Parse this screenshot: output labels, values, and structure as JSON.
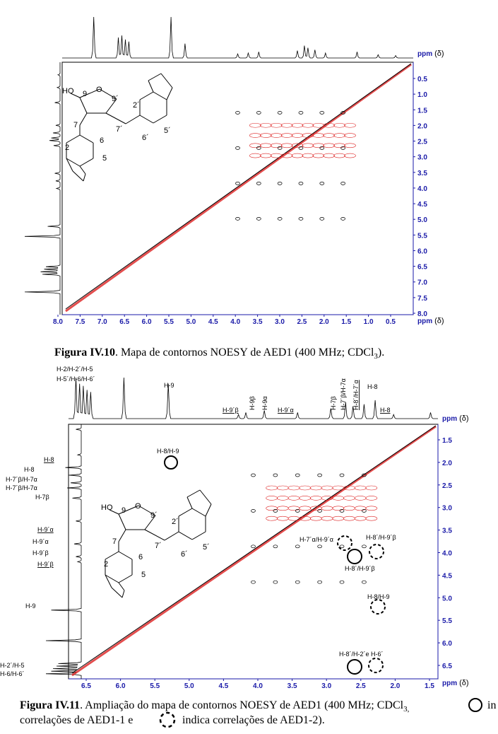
{
  "figure1": {
    "unit": "ppm",
    "delta": "(δ)",
    "x_ticks": [
      "8.0",
      "7.5",
      "7.0",
      "6.5",
      "6.0",
      "5.5",
      "5.0",
      "4.5",
      "4.0",
      "3.5",
      "3.0",
      "2.5",
      "2.0",
      "1.5",
      "1.0",
      "0.5"
    ],
    "y_ticks": [
      "0.5",
      "1.0",
      "1.5",
      "2.0",
      "2.5",
      "3.0",
      "3.5",
      "4.0",
      "4.5",
      "5.0",
      "5.5",
      "6.0",
      "6.5",
      "7.0",
      "7.5",
      "8.0"
    ],
    "structure_labels": [
      "HO",
      "9",
      "O",
      "9´",
      "2´",
      "7",
      "7´",
      "6´",
      "5´",
      "2",
      "6",
      "5"
    ],
    "caption_label": "Figura IV.10",
    "caption_text": ". Mapa de contornos NOESY de AED1 (400 MHz; CDCl",
    "caption_sub": "3",
    "caption_end": ")."
  },
  "figure2": {
    "unit": "ppm",
    "delta": "(δ)",
    "x_ticks": [
      "6.5",
      "6.0",
      "5.5",
      "5.0",
      "4.5",
      "4.0",
      "3.5",
      "3.0",
      "2.5",
      "2.0",
      "1.5"
    ],
    "y_ticks": [
      "1.5",
      "2.0",
      "2.5",
      "3.0",
      "3.5",
      "4.0",
      "4.5",
      "5.0",
      "5.5",
      "6.0",
      "6.5"
    ],
    "structure_labels": [
      "HO",
      "9",
      "O",
      "9´",
      "2´",
      "7",
      "7´",
      "6´",
      "5´",
      "2",
      "6",
      "5"
    ],
    "top_labels": [
      "H-2/H-2´/H-5",
      "H-5´/H-6/H-6´",
      "H-9",
      "H-9´β",
      "H-9β",
      "H-9α",
      "H-9´α",
      "H-7β",
      "H-7´β/H-7α",
      "H-8´/H-7´α",
      "H-8",
      "H-8"
    ],
    "left_labels": [
      "H-8",
      "H-8",
      "H-7´β/H-7α",
      "H-7´β/H-7α",
      "H-7β",
      "H-9´α",
      "H-9´α",
      "H-9´β",
      "H-9´β",
      "H-9",
      "H-2´/H-5",
      "H-6/H-6´"
    ],
    "peak_labels": [
      "H-8/H-9",
      "H-7´α/H-9´α",
      "H-8´/H-9´β",
      "H-8´/H-9´β",
      "H-8/H-9",
      "H-8´/H-2´e H-6´"
    ],
    "caption_label": "Figura IV.11",
    "caption_text": ". Ampliação do mapa de contornos NOESY de AED1 (400 MHz; CDCl",
    "caption_sub": "3,",
    "caption_tail": " in",
    "caption_line2a": "correlações de AED1-1 e",
    "caption_line2b": "indica correlações de AED1-2)."
  }
}
